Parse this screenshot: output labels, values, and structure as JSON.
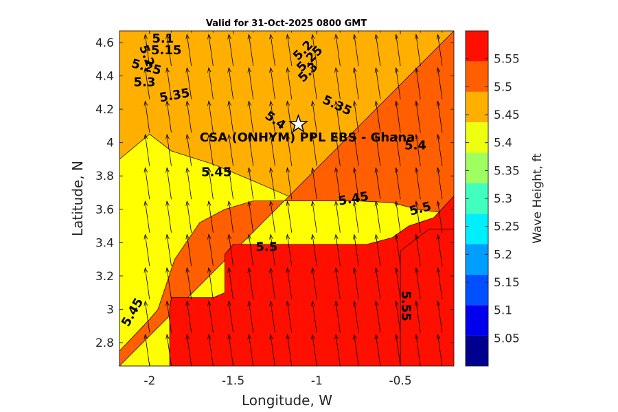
{
  "chart_data": {
    "type": "contour",
    "title": "Valid for 31-Oct-2025 0800 GMT",
    "xlabel": "Longitude, W",
    "ylabel": "Latitude, N",
    "colorbar_label": "Wave Height, ft",
    "xlim": [
      -2.18,
      -0.18
    ],
    "ylim": [
      2.66,
      4.67
    ],
    "xticks": [
      "-2",
      "-1.5",
      "-1",
      "-0.5"
    ],
    "xtick_values": [
      -2,
      -1.5,
      -1,
      -0.5
    ],
    "yticks": [
      "2.8",
      "3",
      "3.2",
      "3.4",
      "3.6",
      "3.8",
      "4",
      "4.2",
      "4.4",
      "4.6"
    ],
    "ytick_values": [
      2.8,
      3.0,
      3.2,
      3.4,
      3.6,
      3.8,
      4.0,
      4.2,
      4.4,
      4.6
    ],
    "colorbar": {
      "range": [
        5.0,
        5.6
      ],
      "tick_labels": [
        "5.05",
        "5.1",
        "5.15",
        "5.2",
        "5.25",
        "5.3",
        "5.35",
        "5.4",
        "5.45",
        "5.5",
        "5.55"
      ],
      "tick_values": [
        5.05,
        5.1,
        5.15,
        5.2,
        5.25,
        5.3,
        5.35,
        5.4,
        5.45,
        5.5,
        5.55
      ],
      "colors": [
        "#00008f",
        "#0000ee",
        "#0050ff",
        "#009fff",
        "#00efff",
        "#40ffbf",
        "#9fff60",
        "#efff10",
        "#ffaf00",
        "#ff5f00",
        "#ff0f00"
      ]
    },
    "levels": [
      {
        "value": 5.1,
        "color": "#0000ee",
        "polygon": [
          [
            -2.18,
            4.67
          ],
          [
            -2.18,
            4.61
          ],
          [
            -2.05,
            4.56
          ],
          [
            -1.87,
            4.6
          ],
          [
            -1.87,
            4.67
          ]
        ]
      },
      {
        "value": 5.15,
        "color": "#0050ff",
        "polygon": [
          [
            -2.18,
            4.67
          ],
          [
            -2.18,
            4.57
          ],
          [
            -2.0,
            4.51
          ],
          [
            -1.87,
            4.53
          ],
          [
            -1.62,
            4.57
          ],
          [
            -1.38,
            4.57
          ],
          [
            -1.15,
            4.5
          ],
          [
            -1.0,
            4.6
          ],
          [
            -0.95,
            4.67
          ]
        ]
      },
      {
        "value": 5.2,
        "color": "#009fff",
        "polygon": [
          [
            -2.18,
            4.67
          ],
          [
            -2.18,
            4.52
          ],
          [
            -2.0,
            4.47
          ],
          [
            -1.87,
            4.47
          ],
          [
            -1.62,
            4.5
          ],
          [
            -1.38,
            4.5
          ],
          [
            -1.15,
            4.45
          ],
          [
            -1.0,
            4.53
          ],
          [
            -0.88,
            4.67
          ]
        ]
      },
      {
        "value": 5.25,
        "color": "#00efff",
        "polygon": [
          [
            -2.18,
            4.67
          ],
          [
            -2.18,
            4.46
          ],
          [
            -2.0,
            4.42
          ],
          [
            -1.87,
            4.4
          ],
          [
            -1.62,
            4.42
          ],
          [
            -1.38,
            4.42
          ],
          [
            -1.15,
            4.38
          ],
          [
            -1.0,
            4.46
          ],
          [
            -0.9,
            4.6
          ],
          [
            -0.5,
            4.67
          ]
        ]
      },
      {
        "value": 5.3,
        "color": "#40ffbf",
        "polygon": [
          [
            -2.18,
            4.67
          ],
          [
            -2.18,
            4.32
          ],
          [
            -1.87,
            4.35
          ],
          [
            -1.62,
            4.35
          ],
          [
            -1.5,
            4.33
          ],
          [
            -1.38,
            4.32
          ],
          [
            -1.15,
            4.3
          ],
          [
            -0.95,
            4.38
          ],
          [
            -0.6,
            4.67
          ],
          [
            -0.18,
            4.67
          ],
          [
            -0.18,
            4.49
          ],
          [
            -0.25,
            4.58
          ],
          [
            -0.55,
            4.58
          ],
          [
            -0.6,
            4.67
          ]
        ]
      },
      {
        "value": 5.35,
        "color": "#9fff60",
        "polygon": [
          [
            -2.18,
            4.67
          ],
          [
            -2.18,
            4.29
          ],
          [
            -1.87,
            4.2
          ],
          [
            -1.62,
            4.21
          ],
          [
            -1.38,
            4.24
          ],
          [
            -1.15,
            4.22
          ],
          [
            -0.95,
            4.19
          ],
          [
            -0.7,
            4.15
          ],
          [
            -0.4,
            4.15
          ],
          [
            -0.18,
            4.28
          ],
          [
            -0.18,
            4.67
          ]
        ]
      },
      {
        "value": 5.4,
        "color": "#efff10",
        "polygon": [
          [
            -2.18,
            4.67
          ],
          [
            -2.18,
            4.05
          ],
          [
            -2.0,
            4.06
          ],
          [
            -1.62,
            4.1
          ],
          [
            -1.5,
            4.2
          ],
          [
            -1.3,
            4.19
          ],
          [
            -1.15,
            4.12
          ],
          [
            -1.0,
            4.1
          ],
          [
            -0.86,
            3.98
          ],
          [
            -0.7,
            3.98
          ],
          [
            -0.4,
            4.02
          ],
          [
            -0.25,
            4.06
          ],
          [
            -0.18,
            4.07
          ],
          [
            -0.18,
            4.67
          ]
        ]
      },
      {
        "value": 5.45,
        "color": "#ffaf00",
        "polygon": [
          [
            -2.18,
            4.67
          ],
          [
            -2.18,
            3.9
          ],
          [
            -2.0,
            4.05
          ],
          [
            -1.87,
            3.95
          ],
          [
            -1.62,
            3.87
          ],
          [
            -1.38,
            3.77
          ],
          [
            -1.15,
            3.67
          ],
          [
            -1.0,
            3.66
          ],
          [
            -0.7,
            3.66
          ],
          [
            -0.5,
            3.73
          ],
          [
            -0.4,
            3.81
          ],
          [
            -0.18,
            3.83
          ],
          [
            -0.18,
            4.67
          ]
        ]
      },
      {
        "value": 5.5,
        "color": "#ff5f00",
        "polygon": [
          [
            -2.18,
            2.66
          ],
          [
            -2.18,
            2.75
          ],
          [
            -2.0,
            2.94
          ],
          [
            -1.95,
            3.0
          ],
          [
            -1.85,
            3.3
          ],
          [
            -1.7,
            3.52
          ],
          [
            -1.55,
            3.6
          ],
          [
            -1.38,
            3.65
          ],
          [
            -1.0,
            3.65
          ],
          [
            -0.75,
            3.65
          ],
          [
            -0.55,
            3.64
          ],
          [
            -0.4,
            3.6
          ],
          [
            -0.25,
            3.58
          ],
          [
            -0.18,
            3.68
          ],
          [
            -0.18,
            4.67
          ],
          [
            -0.18,
            4.67
          ]
        ]
      },
      {
        "value": 5.55,
        "color": "#ff0f00",
        "polygon": [
          [
            -1.88,
            2.66
          ],
          [
            -1.88,
            3.0
          ],
          [
            -1.87,
            3.07
          ],
          [
            -1.62,
            3.07
          ],
          [
            -1.55,
            3.1
          ],
          [
            -1.55,
            3.33
          ],
          [
            -1.5,
            3.39
          ],
          [
            -1.15,
            3.39
          ],
          [
            -0.7,
            3.39
          ],
          [
            -0.55,
            3.43
          ],
          [
            -0.45,
            3.5
          ],
          [
            -0.3,
            3.55
          ],
          [
            -0.18,
            3.68
          ],
          [
            -0.18,
            2.66
          ]
        ]
      },
      {
        "value": 5.6,
        "color": "#ff0f00",
        "polygon": [
          [
            -0.5,
            2.66
          ],
          [
            -0.5,
            3.35
          ],
          [
            -0.33,
            3.48
          ],
          [
            -0.18,
            3.48
          ],
          [
            -0.18,
            2.66
          ]
        ]
      }
    ],
    "contour_labels": [
      {
        "text": "5.1",
        "x": -1.92,
        "y": 4.62,
        "rotate": 0
      },
      {
        "text": "5.15",
        "x": -1.9,
        "y": 4.55,
        "rotate": 0
      },
      {
        "text": "5.2",
        "x": -2.02,
        "y": 4.52,
        "rotate": 70
      },
      {
        "text": "5.25",
        "x": -2.02,
        "y": 4.45,
        "rotate": 15
      },
      {
        "text": "5.3",
        "x": -2.03,
        "y": 4.36,
        "rotate": 0
      },
      {
        "text": "5.35",
        "x": -1.85,
        "y": 4.28,
        "rotate": -10
      },
      {
        "text": "5.2",
        "x": -1.08,
        "y": 4.55,
        "rotate": -45
      },
      {
        "text": "5.25",
        "x": -1.04,
        "y": 4.5,
        "rotate": -45
      },
      {
        "text": "5.3",
        "x": -1.05,
        "y": 4.42,
        "rotate": -45
      },
      {
        "text": "5.35",
        "x": -0.88,
        "y": 4.22,
        "rotate": 25
      },
      {
        "text": "5.4",
        "x": -1.25,
        "y": 4.13,
        "rotate": 35
      },
      {
        "text": "5.4",
        "x": -0.41,
        "y": 3.98,
        "rotate": 0
      },
      {
        "text": "5.45",
        "x": -1.6,
        "y": 3.82,
        "rotate": 0
      },
      {
        "text": "5.45",
        "x": -0.78,
        "y": 3.66,
        "rotate": -10
      },
      {
        "text": "5.5",
        "x": -0.38,
        "y": 3.6,
        "rotate": -15
      },
      {
        "text": "5.5",
        "x": -1.3,
        "y": 3.37,
        "rotate": 0
      },
      {
        "text": "5.45",
        "x": -2.1,
        "y": 2.98,
        "rotate": -60
      },
      {
        "text": "5.55",
        "x": -0.47,
        "y": 3.02,
        "rotate": 90
      }
    ],
    "site": {
      "label": "CSA (ONHYM) PPL EBS  - Ghana",
      "x": -1.11,
      "y": 4.11
    },
    "arrow_grid": {
      "x": [
        -2.18,
        -2.0,
        -1.87,
        -1.75,
        -1.62,
        -1.5,
        -1.38,
        -1.25,
        -1.15,
        -1.0,
        -0.86,
        -0.75,
        -0.62,
        -0.5,
        -0.38,
        -0.25
      ],
      "y": [
        2.66,
        2.86,
        3.06,
        3.26,
        3.46,
        3.66,
        3.86,
        4.06,
        4.26,
        4.46,
        4.66
      ],
      "direction_deg": 8,
      "length": 0.19
    }
  }
}
